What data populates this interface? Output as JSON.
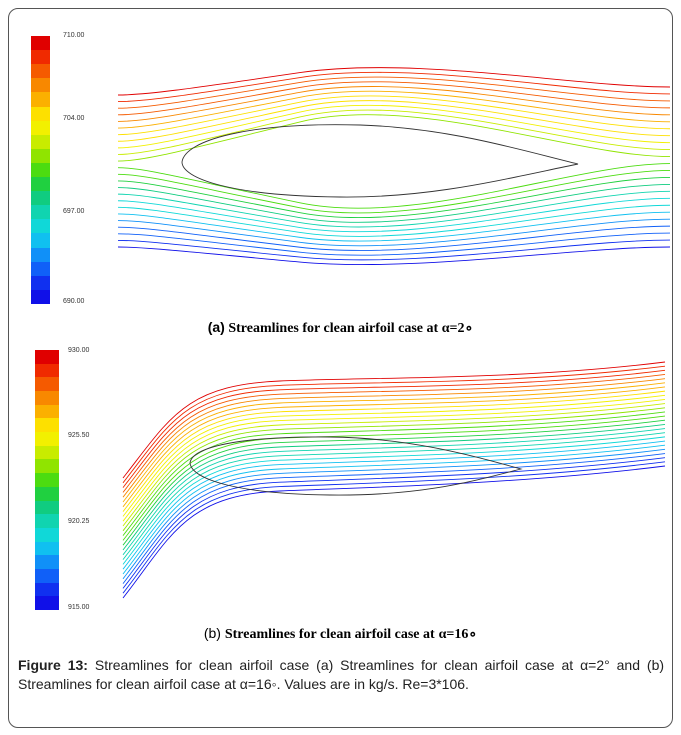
{
  "panel_a": {
    "colorbar": {
      "min_label": "690.00",
      "mid_low_label": "697.00",
      "mid_high_label": "704.00",
      "max_label": "710.00"
    },
    "caption_prefix": "(a)",
    "caption_text": "Streamlines for clean airfoil case at",
    "caption_angle": "α=2∘"
  },
  "panel_b": {
    "colorbar": {
      "min_label": "915.00",
      "mid_low_label": "920.25",
      "mid_high_label": "925.50",
      "max_label": "930.00"
    },
    "caption_prefix": "(b)",
    "caption_text": "Streamlines for clean airfoil case at",
    "caption_angle": "α=16∘"
  },
  "figure_caption": {
    "label": "Figure 13:",
    "text": "Streamlines for clean airfoil case (a) Streamlines for clean airfoil case at α=2° and (b) Streamlines for clean airfoil case at α=16◦. Values are in kg/s. Re=3*106."
  },
  "colors": {
    "scale": [
      "#e00000",
      "#f02a00",
      "#f55a00",
      "#f88800",
      "#fbb000",
      "#fde000",
      "#f2f000",
      "#c8ec00",
      "#90e400",
      "#4cdc10",
      "#20d040",
      "#10cc80",
      "#10d4b0",
      "#10d8d8",
      "#10c0f0",
      "#1090f8",
      "#1060f8",
      "#1030f0",
      "#1010e8"
    ],
    "airfoil": "#333333"
  }
}
